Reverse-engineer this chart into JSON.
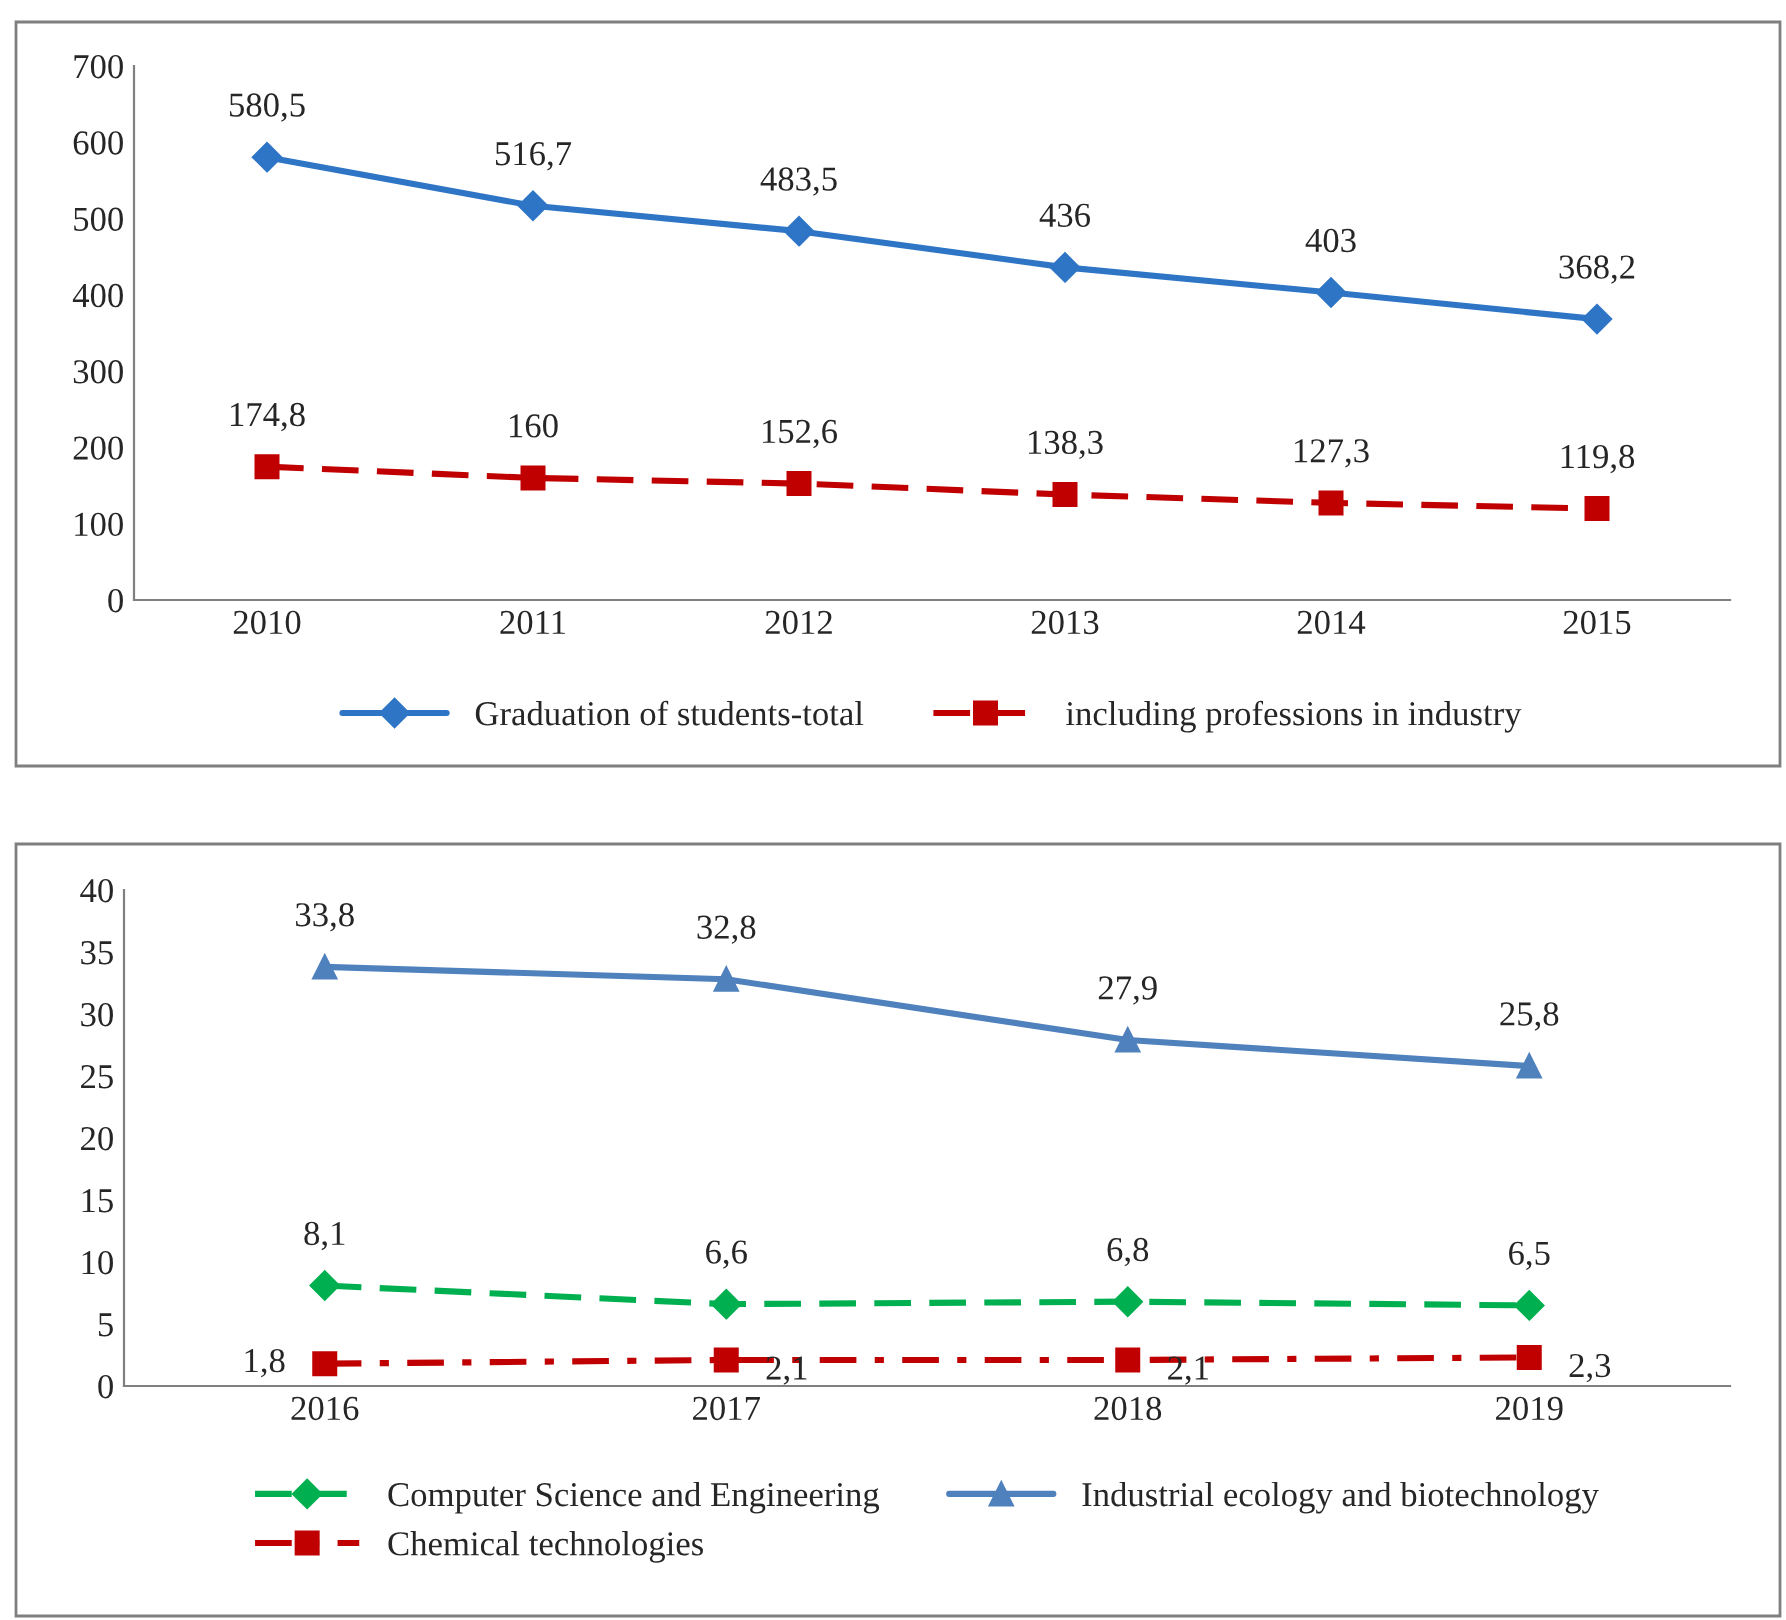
{
  "chart_data": [
    {
      "type": "line",
      "categories": [
        "2010",
        "2011",
        "2012",
        "2013",
        "2014",
        "2015"
      ],
      "ylim": [
        0,
        700
      ],
      "yticks": [
        0,
        100,
        200,
        300,
        400,
        500,
        600,
        700
      ],
      "grid": false,
      "legend": "bottom",
      "series": [
        {
          "name": "Graduation of students-total",
          "color": "#2e75c6",
          "marker": "diamond",
          "line_style": "solid",
          "values": [
            580.5,
            516.7,
            483.5,
            436,
            403,
            368.2
          ],
          "value_labels": [
            "580,5",
            "516,7",
            "483,5",
            "436",
            "403",
            "368,2"
          ]
        },
        {
          "name": "including professions in industry",
          "color": "#c00000",
          "marker": "square",
          "line_style": "dashed",
          "values": [
            174.8,
            160,
            152.6,
            138.3,
            127.3,
            119.8
          ],
          "value_labels": [
            "174,8",
            "160",
            "152,6",
            "138,3",
            "127,3",
            "119,8"
          ]
        }
      ]
    },
    {
      "type": "line",
      "categories": [
        "2016",
        "2017",
        "2018",
        "2019"
      ],
      "ylim": [
        0,
        40
      ],
      "yticks": [
        0,
        5,
        10,
        15,
        20,
        25,
        30,
        35,
        40
      ],
      "grid": false,
      "legend": "bottom",
      "series": [
        {
          "name": "Computer Science and Engineering",
          "color": "#00b050",
          "marker": "diamond",
          "line_style": "dashed",
          "values": [
            8.1,
            6.6,
            6.8,
            6.5
          ],
          "value_labels": [
            "8,1",
            "6,6",
            "6,8",
            "6,5"
          ]
        },
        {
          "name": "Chemical technologies",
          "color": "#c00000",
          "marker": "square",
          "line_style": "dashdot",
          "values": [
            1.8,
            2.1,
            2.1,
            2.3
          ],
          "value_labels": [
            "1,8",
            "2,1",
            "2,1",
            "2,3"
          ]
        },
        {
          "name": "Industrial ecology and biotechnology",
          "color": "#4f81bd",
          "marker": "triangle",
          "line_style": "solid",
          "values": [
            33.8,
            32.8,
            27.9,
            25.8
          ],
          "value_labels": [
            "33,8",
            "32,8",
            "27,9",
            "25,8"
          ]
        }
      ]
    }
  ]
}
